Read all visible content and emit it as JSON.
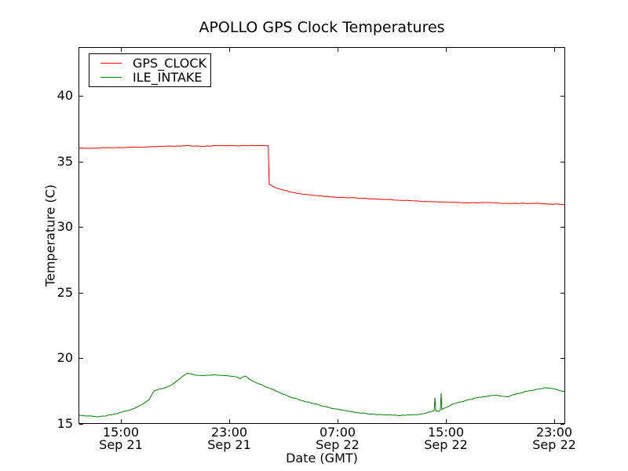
{
  "chart_data": {
    "type": "line",
    "title": "APOLLO GPS Clock Temperatures",
    "xlabel": "Date (GMT)",
    "ylabel": "Temperature (C)",
    "background_color": "#ffffff",
    "frame_color": "#000000",
    "grid": false,
    "legend_position": "upper-left",
    "x_unit": "hours since Sep 21 00:00 GMT",
    "xlim": [
      11.87,
      47.81
    ],
    "ylim": [
      15,
      43.71
    ],
    "yticks": [
      15,
      20,
      25,
      30,
      35,
      40
    ],
    "xticks": [
      {
        "t": 15,
        "time": "15:00",
        "date": "Sep 21"
      },
      {
        "t": 23,
        "time": "23:00",
        "date": "Sep 21"
      },
      {
        "t": 31,
        "time": "07:00",
        "date": "Sep 22"
      },
      {
        "t": 39,
        "time": "15:00",
        "date": "Sep 22"
      },
      {
        "t": 47,
        "time": "23:00",
        "date": "Sep 22"
      }
    ],
    "series": [
      {
        "name": "GPS_CLOCK",
        "color": "#ff0000",
        "points": [
          [
            11.87,
            36.0
          ],
          [
            13,
            36.0
          ],
          [
            14,
            36.05
          ],
          [
            15,
            36.05
          ],
          [
            16,
            36.1
          ],
          [
            17,
            36.1
          ],
          [
            18,
            36.15
          ],
          [
            19,
            36.15
          ],
          [
            20,
            36.2
          ],
          [
            21,
            36.15
          ],
          [
            22,
            36.2
          ],
          [
            23,
            36.2
          ],
          [
            24,
            36.2
          ],
          [
            25,
            36.2
          ],
          [
            25.88,
            36.2
          ],
          [
            25.95,
            33.25
          ],
          [
            26.3,
            33.05
          ],
          [
            26.9,
            32.85
          ],
          [
            27.6,
            32.65
          ],
          [
            28.4,
            32.5
          ],
          [
            29.4,
            32.4
          ],
          [
            30.4,
            32.3
          ],
          [
            31.5,
            32.25
          ],
          [
            32.5,
            32.2
          ],
          [
            33.5,
            32.15
          ],
          [
            34.5,
            32.1
          ],
          [
            35.5,
            32.05
          ],
          [
            36.5,
            32.0
          ],
          [
            37.5,
            31.95
          ],
          [
            38.5,
            31.9
          ],
          [
            39.5,
            31.9
          ],
          [
            40.5,
            31.85
          ],
          [
            41.5,
            31.85
          ],
          [
            42.5,
            31.85
          ],
          [
            43.5,
            31.8
          ],
          [
            44.5,
            31.8
          ],
          [
            45.5,
            31.8
          ],
          [
            46.5,
            31.75
          ],
          [
            47.3,
            31.75
          ],
          [
            47.81,
            31.7
          ]
        ]
      },
      {
        "name": "ILE_INTAKE",
        "color": "#007f00",
        "points": [
          [
            11.87,
            15.65
          ],
          [
            12.45,
            15.6
          ],
          [
            13.14,
            15.55
          ],
          [
            13.72,
            15.6
          ],
          [
            14.3,
            15.7
          ],
          [
            14.88,
            15.85
          ],
          [
            15.46,
            16.0
          ],
          [
            16.04,
            16.2
          ],
          [
            16.62,
            16.5
          ],
          [
            17.09,
            16.85
          ],
          [
            17.32,
            17.3
          ],
          [
            17.49,
            17.55
          ],
          [
            17.84,
            17.65
          ],
          [
            18.25,
            17.75
          ],
          [
            18.71,
            17.95
          ],
          [
            19.17,
            18.3
          ],
          [
            19.52,
            18.6
          ],
          [
            19.87,
            18.85
          ],
          [
            20.22,
            18.8
          ],
          [
            20.68,
            18.7
          ],
          [
            21.26,
            18.7
          ],
          [
            21.84,
            18.75
          ],
          [
            22.42,
            18.7
          ],
          [
            23.0,
            18.65
          ],
          [
            23.46,
            18.6
          ],
          [
            23.81,
            18.45
          ],
          [
            24.16,
            18.65
          ],
          [
            24.51,
            18.4
          ],
          [
            24.97,
            18.15
          ],
          [
            25.55,
            17.9
          ],
          [
            26.13,
            17.65
          ],
          [
            26.71,
            17.4
          ],
          [
            27.29,
            17.15
          ],
          [
            27.87,
            16.95
          ],
          [
            28.45,
            16.75
          ],
          [
            29.03,
            16.6
          ],
          [
            29.61,
            16.45
          ],
          [
            30.19,
            16.3
          ],
          [
            30.77,
            16.15
          ],
          [
            31.35,
            16.05
          ],
          [
            31.93,
            15.95
          ],
          [
            32.51,
            15.85
          ],
          [
            33.09,
            15.8
          ],
          [
            33.67,
            15.75
          ],
          [
            34.25,
            15.7
          ],
          [
            34.83,
            15.7
          ],
          [
            35.41,
            15.65
          ],
          [
            35.99,
            15.65
          ],
          [
            36.57,
            15.7
          ],
          [
            37.15,
            15.75
          ],
          [
            37.61,
            15.85
          ],
          [
            37.96,
            15.95
          ],
          [
            38.13,
            16.0
          ],
          [
            38.19,
            17.0
          ],
          [
            38.25,
            16.0
          ],
          [
            38.48,
            15.95
          ],
          [
            38.59,
            16.05
          ],
          [
            38.65,
            17.35
          ],
          [
            38.7,
            16.1
          ],
          [
            39.0,
            16.25
          ],
          [
            39.46,
            16.5
          ],
          [
            39.93,
            16.65
          ],
          [
            40.51,
            16.8
          ],
          [
            41.09,
            16.95
          ],
          [
            41.67,
            17.05
          ],
          [
            42.25,
            17.15
          ],
          [
            42.72,
            17.2
          ],
          [
            43.18,
            17.1
          ],
          [
            43.58,
            17.05
          ],
          [
            44.1,
            17.25
          ],
          [
            44.68,
            17.4
          ],
          [
            45.26,
            17.55
          ],
          [
            45.84,
            17.65
          ],
          [
            46.3,
            17.75
          ],
          [
            46.77,
            17.7
          ],
          [
            47.23,
            17.6
          ],
          [
            47.58,
            17.5
          ],
          [
            47.81,
            17.45
          ]
        ]
      }
    ]
  }
}
